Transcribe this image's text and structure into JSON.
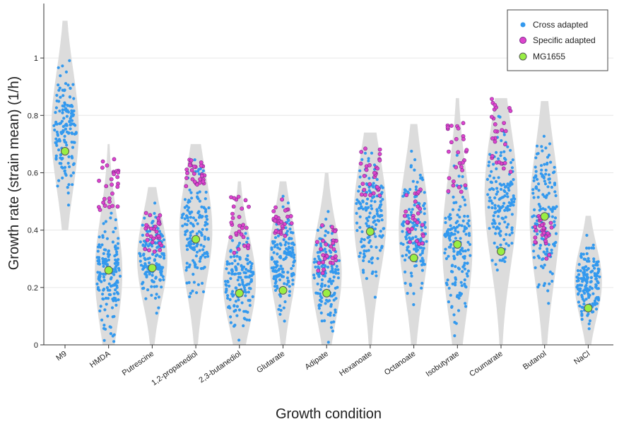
{
  "chart_data": {
    "type": "scatter",
    "subtype": "violin-strip",
    "xlabel": "Growth condition",
    "ylabel": "Growth rate (strain mean) (1/h)",
    "ylim": [
      0,
      1.19
    ],
    "yticks": [
      0,
      0.2,
      0.4,
      0.6,
      0.8,
      1
    ],
    "grid": true,
    "legend_position": "top-right",
    "categories": [
      "M9",
      "HMDA",
      "Putrescine",
      "1,2-propanediol",
      "2,3-butanediol",
      "Glutarate",
      "Adipate",
      "Hexanoate",
      "Octanoate",
      "Isobutyrate",
      "Coumarate",
      "Butanol",
      "NaCl"
    ],
    "series": [
      {
        "name": "Cross adapted",
        "color": "#3399ee",
        "marker": "circle-small"
      },
      {
        "name": "Specific adapted",
        "color": "#dd44cc",
        "edge": "#7a2a8a",
        "marker": "circle-small"
      },
      {
        "name": "MG1655",
        "color": "#99ee44",
        "edge": "#555555",
        "marker": "circle-large"
      }
    ],
    "violins": [
      {
        "category": "M9",
        "min": 0.4,
        "max": 1.13,
        "center": 0.75,
        "width": 0.5
      },
      {
        "category": "HMDA",
        "min": 0.0,
        "max": 0.7,
        "center": 0.25,
        "width": 0.5
      },
      {
        "category": "Putrescine",
        "min": 0.0,
        "max": 0.55,
        "center": 0.3,
        "width": 0.55
      },
      {
        "category": "1,2-propanediol",
        "min": 0.0,
        "max": 0.7,
        "center": 0.4,
        "width": 0.6
      },
      {
        "category": "2,3-butanediol",
        "min": 0.0,
        "max": 0.57,
        "center": 0.22,
        "width": 0.6
      },
      {
        "category": "Glutarate",
        "min": 0.0,
        "max": 0.57,
        "center": 0.3,
        "width": 0.5
      },
      {
        "category": "Adipate",
        "min": 0.0,
        "max": 0.6,
        "center": 0.25,
        "width": 0.55
      },
      {
        "category": "Hexanoate",
        "min": 0.0,
        "max": 0.74,
        "center": 0.45,
        "width": 0.6
      },
      {
        "category": "Octanoate",
        "min": 0.0,
        "max": 0.77,
        "center": 0.4,
        "width": 0.55
      },
      {
        "category": "Isobutyrate",
        "min": 0.0,
        "max": 0.86,
        "center": 0.35,
        "width": 0.55
      },
      {
        "category": "Coumarate",
        "min": 0.0,
        "max": 0.86,
        "center": 0.52,
        "width": 0.6
      },
      {
        "category": "Butanol",
        "min": 0.0,
        "max": 0.85,
        "center": 0.45,
        "width": 0.55
      },
      {
        "category": "NaCl",
        "min": 0.0,
        "max": 0.45,
        "center": 0.22,
        "width": 0.5
      }
    ],
    "mg1655_values": [
      0.675,
      0.26,
      0.268,
      0.368,
      0.18,
      0.19,
      0.18,
      0.395,
      0.303,
      0.35,
      0.326,
      0.448,
      0.128
    ],
    "specific_ranges": [
      null,
      [
        0.47,
        0.65
      ],
      [
        0.32,
        0.46
      ],
      [
        0.55,
        0.65
      ],
      [
        0.32,
        0.52
      ],
      [
        0.38,
        0.52
      ],
      [
        0.25,
        0.42
      ],
      [
        0.52,
        0.69
      ],
      [
        0.35,
        0.55
      ],
      [
        0.52,
        0.81
      ],
      [
        0.6,
        0.86
      ],
      [
        0.28,
        0.45
      ],
      null
    ]
  }
}
